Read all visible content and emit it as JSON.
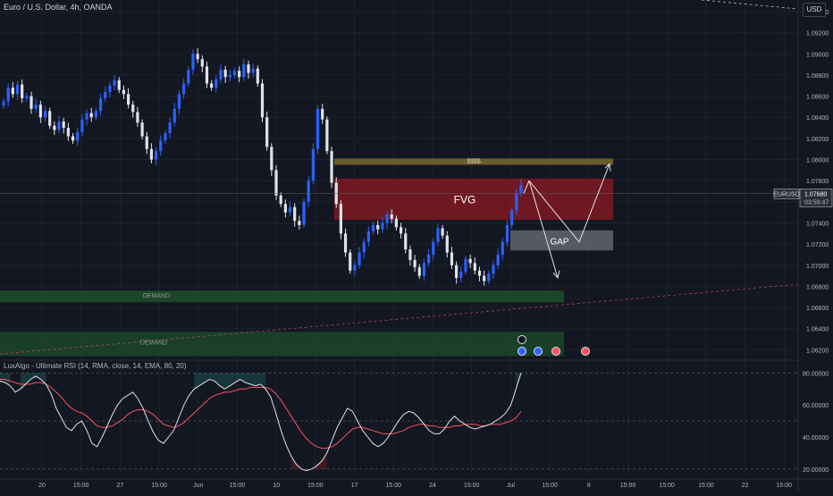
{
  "header": {
    "symbol_title": "Euro / U.S. Dollar, 4h, OANDA",
    "currency": "USD"
  },
  "indicator": {
    "title": "LuxAlgo - Ultimate RSI (14, RMA, close, 14, EMA, 80, 20)"
  },
  "price_tag": {
    "symbol": "EURUSD",
    "price": "1.07680",
    "countdown": "03:59:47"
  },
  "colors": {
    "background": "#131722",
    "bull": "#2962ff",
    "bear": "#e0e3eb",
    "fvg": "#801922",
    "gap": "#5d606b",
    "demand": "#1e4d2b",
    "target": "#6b5b2e",
    "rsi": "#e0e3eb",
    "signal": "#f7525f"
  },
  "zones": {
    "fvg": "FVG",
    "gap": "GAP",
    "demand_1": "DEMAND",
    "demand_2": "DEMAND",
    "target": "$$$$"
  },
  "chart_data": [
    {
      "type": "candlestick",
      "title": "Euro / U.S. Dollar, 4h, OANDA",
      "y_axis_ticks": [
        "1.09400",
        "1.09200",
        "1.09000",
        "1.08800",
        "1.08600",
        "1.08400",
        "1.08200",
        "1.08000",
        "1.07800",
        "1.07600",
        "1.07400",
        "1.07200",
        "1.07000",
        "1.06800",
        "1.06600",
        "1.06400",
        "1.06200"
      ],
      "x_axis_ticks": [
        "20",
        "15:00",
        "27",
        "15:00",
        "Jun",
        "15:00",
        "10",
        "15:00",
        "17",
        "15:00",
        "24",
        "15:00",
        "Jul",
        "15:00",
        "8",
        "15:00",
        "15:00",
        "15:00",
        "22",
        "15:00"
      ],
      "ylim": [
        1.0611,
        1.0951
      ],
      "last_price": 1.0768,
      "path_closes": [
        1.0855,
        1.0868,
        1.0862,
        1.0871,
        1.0858,
        1.086,
        1.0848,
        1.0852,
        1.084,
        1.0846,
        1.0832,
        1.0828,
        1.0836,
        1.083,
        1.0822,
        1.0818,
        1.0826,
        1.0838,
        1.0844,
        1.084,
        1.0846,
        1.0858,
        1.0864,
        1.087,
        1.0875,
        1.0866,
        1.0862,
        1.0852,
        1.0845,
        1.0835,
        1.0822,
        1.081,
        1.08,
        1.0808,
        1.0818,
        1.0825,
        1.0835,
        1.0848,
        1.0862,
        1.0872,
        1.0885,
        1.09,
        1.0895,
        1.0888,
        1.0872,
        1.0868,
        1.0876,
        1.0885,
        1.0878,
        1.088,
        1.0884,
        1.0878,
        1.089,
        1.0882,
        1.0886,
        1.0872,
        1.084,
        1.0812,
        1.079,
        1.0766,
        1.0758,
        1.075,
        1.0755,
        1.0742,
        1.0738,
        1.076,
        1.078,
        1.081,
        1.0848,
        1.0838,
        1.0808,
        1.0778,
        1.0758,
        1.073,
        1.0712,
        1.0695,
        1.07,
        1.0712,
        1.0722,
        1.0732,
        1.0738,
        1.0734,
        1.074,
        1.0748,
        1.0744,
        1.0736,
        1.073,
        1.0715,
        1.0705,
        1.0698,
        1.069,
        1.0702,
        1.071,
        1.0722,
        1.0735,
        1.0728,
        1.0712,
        1.07,
        1.0688,
        1.0694,
        1.0706,
        1.0702,
        1.0695,
        1.069,
        1.0685,
        1.0692,
        1.07,
        1.071,
        1.0722,
        1.0738,
        1.0752,
        1.0768,
        1.0776
      ],
      "annotations": [
        "FVG",
        "GAP",
        "DEMAND",
        "DEMAND",
        "$$$$",
        "EURUSD",
        "1.07680",
        "03:59:47"
      ]
    },
    {
      "type": "line",
      "title": "LuxAlgo - Ultimate RSI (14, RMA, close, 14, EMA, 80, 20)",
      "y_axis_ticks": [
        "80.00000",
        "60.00000",
        "40.00000",
        "20.00000"
      ],
      "ylim": [
        16,
        88
      ],
      "levels": [
        80,
        50,
        20
      ],
      "series": [
        {
          "values": [
            75,
            74,
            72,
            68,
            70,
            73,
            76,
            78,
            76,
            73,
            67,
            58,
            52,
            46,
            44,
            48,
            50,
            44,
            36,
            34,
            40,
            47,
            54,
            60,
            64,
            66,
            68,
            64,
            58,
            50,
            43,
            38,
            36,
            40,
            44,
            52,
            60,
            66,
            70,
            72,
            74,
            76,
            75,
            72,
            70,
            72,
            74,
            76,
            74,
            73,
            72,
            73,
            70,
            65,
            55,
            44,
            35,
            28,
            23,
            20,
            19,
            20,
            22,
            25,
            30,
            38,
            46,
            52,
            58,
            56,
            50,
            44,
            40,
            36,
            34,
            36,
            40,
            45,
            50,
            54,
            56,
            55,
            52,
            48,
            44,
            42,
            42,
            45,
            50,
            53,
            50,
            48,
            46,
            45,
            46,
            47,
            48,
            50,
            52,
            55,
            60,
            70,
            80
          ]
        },
        {
          "values": [
            76,
            76,
            75,
            74,
            73,
            73,
            73,
            74,
            74,
            73,
            71,
            68,
            65,
            61,
            58,
            56,
            55,
            53,
            50,
            47,
            46,
            46,
            47,
            49,
            51,
            54,
            56,
            57,
            57,
            56,
            54,
            51,
            48,
            47,
            46,
            47,
            49,
            52,
            55,
            58,
            61,
            64,
            66,
            67,
            68,
            68,
            69,
            70,
            70,
            71,
            71,
            71,
            71,
            70,
            67,
            63,
            58,
            53,
            48,
            43,
            39,
            36,
            34,
            33,
            33,
            34,
            36,
            39,
            42,
            45,
            46,
            46,
            45,
            44,
            43,
            42,
            42,
            42,
            43,
            44,
            46,
            47,
            48,
            48,
            47,
            47,
            46,
            46,
            46,
            47,
            47,
            48,
            48,
            48,
            47,
            47,
            48,
            48,
            48,
            49,
            50,
            52,
            56
          ]
        }
      ]
    }
  ]
}
